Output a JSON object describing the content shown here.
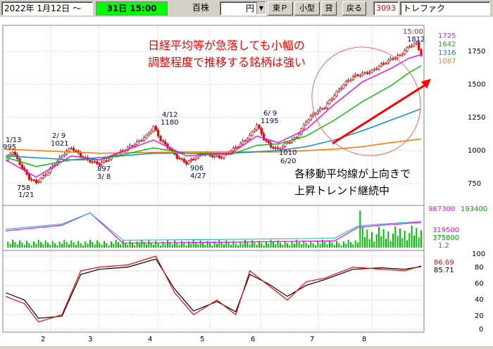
{
  "toolbar": {
    "date": "2022年 1月12日 ～",
    "period": "31日 15:00",
    "unit": "百株",
    "currency": "円",
    "market": "東Ｐ",
    "category": "小型",
    "margin": "貸",
    "back_label": "戻る",
    "code": "3093",
    "name": "トレファク"
  },
  "chart": {
    "annotation_top": [
      "日経平均等が急落しても小幅の",
      "調整程度で推移する銘柄は強い"
    ],
    "annotation_bottom": [
      "各移動平均線が上向きで",
      "上昇トレンド継続中"
    ],
    "price_labels": [
      {
        "text": "1/13"
      },
      {
        "text": "995"
      },
      {
        "text": "758"
      },
      {
        "text": "1/21"
      },
      {
        "text": "2/ 9"
      },
      {
        "text": "1021"
      },
      {
        "text": "897"
      },
      {
        "text": "3/ 8"
      },
      {
        "text": "4/12"
      },
      {
        "text": "1180"
      },
      {
        "text": "906"
      },
      {
        "text": "4/27"
      },
      {
        "text": "6/ 9"
      },
      {
        "text": "1195"
      },
      {
        "text": "1010"
      },
      {
        "text": "6/20"
      },
      {
        "text": "15:00"
      },
      {
        "text": "1812"
      }
    ],
    "legend_ma": [
      "1725",
      "1642",
      "1316",
      "1087"
    ],
    "legend_ma_colors": [
      "#ff00ff",
      "#00c000",
      "#0088cc",
      "#ff8000"
    ],
    "volume_legend": {
      "top_left": "987300",
      "top_right": "193400",
      "v1": "319500",
      "v2": "375800",
      "ratio": "1.2"
    },
    "osc_legend": [
      "86.69",
      "85.71"
    ],
    "y_axis_price": [
      "1750",
      "1500",
      "1250",
      "1000",
      "750"
    ],
    "y_axis_osc": [
      "100",
      "80",
      "60",
      "40",
      "20",
      "0"
    ],
    "x_axis": [
      "2",
      "3",
      "4",
      "5",
      "6",
      "7",
      "8"
    ]
  },
  "chart_data": {
    "type": "candlestick",
    "x_months": [
      "2",
      "3",
      "4",
      "5",
      "6",
      "7",
      "8"
    ],
    "price_axis": [
      750,
      1000,
      1250,
      1500,
      1750
    ],
    "oscillator_axis": [
      0,
      20,
      40,
      60,
      80,
      100
    ],
    "price_path": [
      [
        0,
        930
      ],
      [
        3,
        995
      ],
      [
        6,
        900
      ],
      [
        10,
        790
      ],
      [
        13,
        758
      ],
      [
        17,
        820
      ],
      [
        21,
        900
      ],
      [
        25,
        980
      ],
      [
        28,
        1021
      ],
      [
        32,
        960
      ],
      [
        36,
        920
      ],
      [
        40,
        897
      ],
      [
        44,
        940
      ],
      [
        48,
        980
      ],
      [
        52,
        1020
      ],
      [
        56,
        1060
      ],
      [
        60,
        1110
      ],
      [
        63,
        1180
      ],
      [
        66,
        1080
      ],
      [
        70,
        1010
      ],
      [
        73,
        950
      ],
      [
        77,
        906
      ],
      [
        80,
        940
      ],
      [
        84,
        980
      ],
      [
        88,
        960
      ],
      [
        92,
        950
      ],
      [
        96,
        1000
      ],
      [
        100,
        1050
      ],
      [
        104,
        1110
      ],
      [
        107,
        1195
      ],
      [
        110,
        1090
      ],
      [
        113,
        1030
      ],
      [
        116,
        1010
      ],
      [
        120,
        1060
      ],
      [
        124,
        1100
      ],
      [
        128,
        1220
      ],
      [
        132,
        1290
      ],
      [
        136,
        1330
      ],
      [
        140,
        1420
      ],
      [
        144,
        1500
      ],
      [
        148,
        1560
      ],
      [
        152,
        1580
      ],
      [
        156,
        1600
      ],
      [
        160,
        1650
      ],
      [
        164,
        1690
      ],
      [
        168,
        1720
      ],
      [
        172,
        1790
      ],
      [
        175,
        1812
      ],
      [
        177,
        1725
      ]
    ],
    "ma_short": [
      [
        0,
        930
      ],
      [
        13,
        800
      ],
      [
        28,
        960
      ],
      [
        40,
        930
      ],
      [
        63,
        1080
      ],
      [
        77,
        960
      ],
      [
        96,
        980
      ],
      [
        107,
        1110
      ],
      [
        116,
        1060
      ],
      [
        128,
        1160
      ],
      [
        140,
        1350
      ],
      [
        152,
        1520
      ],
      [
        164,
        1620
      ],
      [
        172,
        1700
      ],
      [
        177,
        1725
      ]
    ],
    "ma_mid": [
      [
        0,
        950
      ],
      [
        13,
        880
      ],
      [
        28,
        930
      ],
      [
        40,
        930
      ],
      [
        63,
        1020
      ],
      [
        77,
        980
      ],
      [
        96,
        970
      ],
      [
        107,
        1040
      ],
      [
        116,
        1050
      ],
      [
        128,
        1110
      ],
      [
        140,
        1230
      ],
      [
        152,
        1370
      ],
      [
        164,
        1490
      ],
      [
        172,
        1590
      ],
      [
        177,
        1642
      ]
    ],
    "ma_long": [
      [
        0,
        960
      ],
      [
        28,
        930
      ],
      [
        63,
        980
      ],
      [
        96,
        980
      ],
      [
        116,
        1000
      ],
      [
        128,
        1030
      ],
      [
        140,
        1080
      ],
      [
        152,
        1150
      ],
      [
        164,
        1230
      ],
      [
        177,
        1316
      ]
    ],
    "ma_very_long": [
      [
        0,
        1010
      ],
      [
        40,
        980
      ],
      [
        77,
        990
      ],
      [
        116,
        990
      ],
      [
        140,
        1010
      ],
      [
        152,
        1030
      ],
      [
        164,
        1060
      ],
      [
        177,
        1087
      ]
    ],
    "volume_line": [
      [
        0,
        30
      ],
      [
        24,
        40
      ],
      [
        36,
        62
      ],
      [
        50,
        8
      ],
      [
        100,
        10
      ],
      [
        140,
        12
      ],
      [
        150,
        36
      ],
      [
        160,
        40
      ],
      [
        177,
        45
      ]
    ],
    "oscillator_k": [
      [
        0,
        45
      ],
      [
        8,
        35
      ],
      [
        14,
        10
      ],
      [
        24,
        20
      ],
      [
        32,
        80
      ],
      [
        40,
        85
      ],
      [
        52,
        88
      ],
      [
        64,
        100
      ],
      [
        72,
        50
      ],
      [
        80,
        20
      ],
      [
        90,
        40
      ],
      [
        98,
        20
      ],
      [
        104,
        80
      ],
      [
        112,
        60
      ],
      [
        120,
        40
      ],
      [
        128,
        65
      ],
      [
        136,
        70
      ],
      [
        148,
        85
      ],
      [
        160,
        82
      ],
      [
        170,
        80
      ],
      [
        177,
        86.69
      ]
    ],
    "oscillator_d": [
      [
        0,
        50
      ],
      [
        8,
        40
      ],
      [
        14,
        15
      ],
      [
        24,
        18
      ],
      [
        32,
        75
      ],
      [
        40,
        82
      ],
      [
        52,
        85
      ],
      [
        64,
        96
      ],
      [
        72,
        55
      ],
      [
        80,
        25
      ],
      [
        90,
        38
      ],
      [
        98,
        24
      ],
      [
        104,
        75
      ],
      [
        112,
        62
      ],
      [
        120,
        45
      ],
      [
        128,
        60
      ],
      [
        136,
        68
      ],
      [
        148,
        82
      ],
      [
        160,
        84
      ],
      [
        170,
        82
      ],
      [
        177,
        85.71
      ]
    ]
  }
}
